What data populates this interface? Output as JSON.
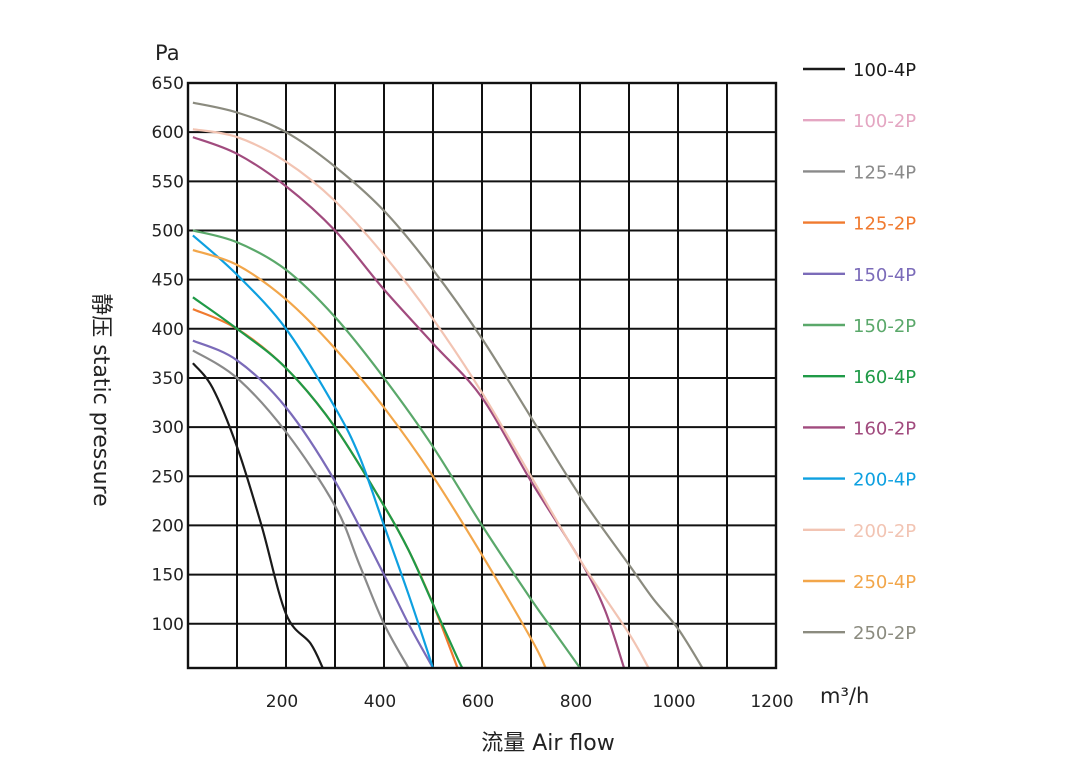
{
  "chart_data": {
    "type": "line",
    "title": "",
    "xlabel": "流量 Air flow",
    "ylabel": "静压 static pressure",
    "x_unit": "m³/h",
    "y_unit": "Pa",
    "xlim": [
      0,
      1200
    ],
    "ylim": [
      55,
      650
    ],
    "x_ticks": [
      200,
      400,
      600,
      800,
      1000,
      1200
    ],
    "y_ticks": [
      100,
      150,
      200,
      250,
      300,
      350,
      400,
      450,
      500,
      550,
      600,
      650
    ],
    "grid": true,
    "legend_position": "right",
    "series": [
      {
        "name": "100-4P",
        "color": "#1a1a1a",
        "x": [
          10,
          50,
          100,
          150,
          200,
          250,
          275
        ],
        "y": [
          365,
          340,
          280,
          200,
          110,
          80,
          55
        ]
      },
      {
        "name": "100-2P",
        "color": "#e4a6c2",
        "x": [],
        "y": []
      },
      {
        "name": "125-4P",
        "color": "#8a8a8a",
        "x": [
          10,
          100,
          200,
          300,
          350,
          400,
          450
        ],
        "y": [
          378,
          350,
          295,
          220,
          160,
          100,
          55
        ]
      },
      {
        "name": "125-2P",
        "color": "#f07a2f",
        "x": [
          10,
          100,
          200,
          300,
          400,
          450,
          500,
          550
        ],
        "y": [
          420,
          400,
          360,
          300,
          220,
          175,
          120,
          55
        ]
      },
      {
        "name": "150-4P",
        "color": "#7b6bb9",
        "x": [
          10,
          100,
          200,
          300,
          400,
          450,
          500
        ],
        "y": [
          388,
          368,
          320,
          245,
          150,
          100,
          55
        ]
      },
      {
        "name": "150-2P",
        "color": "#5aa86a",
        "x": [
          10,
          100,
          200,
          300,
          400,
          500,
          600,
          700,
          750,
          800
        ],
        "y": [
          500,
          488,
          460,
          412,
          350,
          280,
          200,
          125,
          90,
          55
        ]
      },
      {
        "name": "160-4P",
        "color": "#1f9a47",
        "x": [
          10,
          100,
          200,
          300,
          400,
          450,
          500,
          550,
          560
        ],
        "y": [
          432,
          400,
          360,
          300,
          220,
          175,
          120,
          65,
          55
        ]
      },
      {
        "name": "160-2P",
        "color": "#a14b7e",
        "x": [
          10,
          100,
          200,
          300,
          400,
          500,
          600,
          700,
          800,
          850,
          890
        ],
        "y": [
          595,
          578,
          545,
          500,
          440,
          385,
          330,
          245,
          165,
          115,
          55
        ]
      },
      {
        "name": "200-4P",
        "color": "#0ea0e0",
        "x": [
          10,
          100,
          200,
          300,
          350,
          400,
          450,
          500
        ],
        "y": [
          495,
          455,
          400,
          320,
          270,
          200,
          130,
          55
        ]
      },
      {
        "name": "200-2P",
        "color": "#f2c4b3",
        "x": [
          10,
          100,
          200,
          300,
          400,
          500,
          600,
          700,
          800,
          900,
          940
        ],
        "y": [
          603,
          595,
          570,
          530,
          475,
          410,
          335,
          250,
          165,
          90,
          55
        ]
      },
      {
        "name": "250-4P",
        "color": "#f2a64a",
        "x": [
          10,
          100,
          200,
          300,
          400,
          500,
          600,
          700,
          730
        ],
        "y": [
          480,
          465,
          430,
          380,
          320,
          250,
          170,
          85,
          55
        ]
      },
      {
        "name": "250-2P",
        "color": "#8b8b7f",
        "x": [
          10,
          100,
          200,
          300,
          400,
          500,
          600,
          700,
          800,
          900,
          950,
          1000,
          1050
        ],
        "y": [
          630,
          620,
          600,
          565,
          520,
          460,
          390,
          310,
          230,
          160,
          125,
          95,
          55
        ]
      }
    ]
  }
}
